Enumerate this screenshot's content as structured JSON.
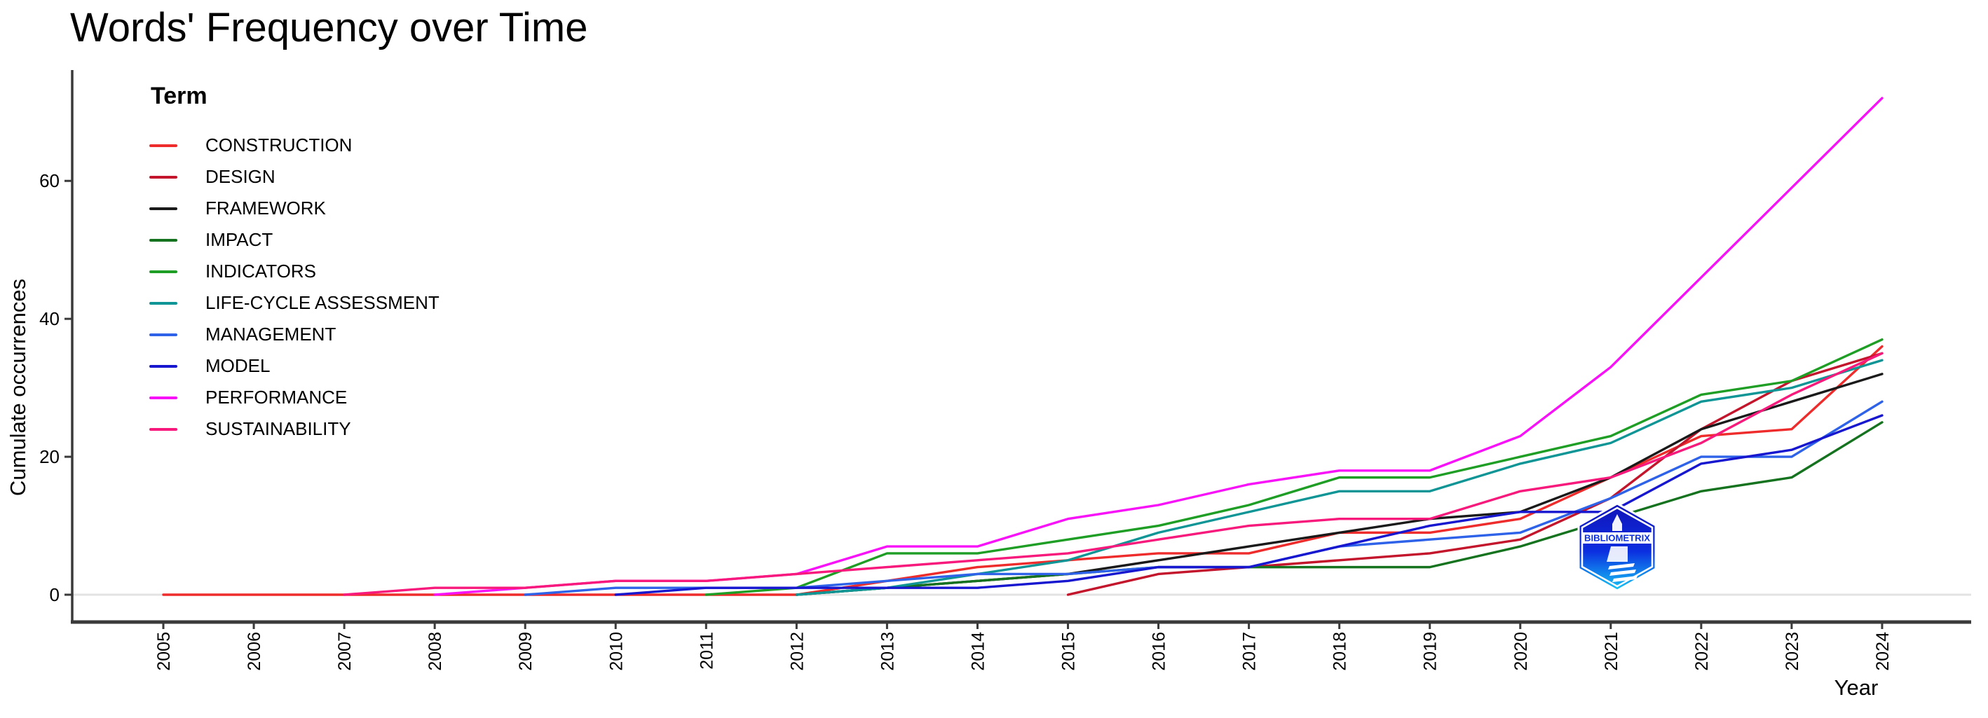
{
  "title": "Words' Frequency over Time",
  "axes": {
    "x_label": "Year",
    "y_label": "Cumulate occurrences",
    "y_ticks": [
      0,
      20,
      40,
      60
    ],
    "x_ticks": [
      "2005",
      "2006",
      "2007",
      "2008",
      "2009",
      "2010",
      "2011",
      "2012",
      "2013",
      "2014",
      "2015",
      "2016",
      "2017",
      "2018",
      "2019",
      "2020",
      "2021",
      "2022",
      "2023",
      "2024"
    ]
  },
  "legend": {
    "title": "Term",
    "items": [
      {
        "label": "CONSTRUCTION",
        "color": "#EE2C2C"
      },
      {
        "label": "DESIGN",
        "color": "#C3152B"
      },
      {
        "label": "FRAMEWORK",
        "color": "#1A1A1A"
      },
      {
        "label": "IMPACT",
        "color": "#15731F"
      },
      {
        "label": "INDICATORS",
        "color": "#1F9E25"
      },
      {
        "label": "LIFE-CYCLE ASSESSMENT",
        "color": "#0F9595"
      },
      {
        "label": "MANAGEMENT",
        "color": "#2E62E8"
      },
      {
        "label": "MODEL",
        "color": "#1717CF"
      },
      {
        "label": "PERFORMANCE",
        "color": "#F811F8"
      },
      {
        "label": "SUSTAINABILITY",
        "color": "#F7197B"
      }
    ]
  },
  "watermark": {
    "text": "BIBLIOMETRIX"
  },
  "chart_data": {
    "type": "line",
    "title": "Words' Frequency over Time",
    "xlabel": "Year",
    "ylabel": "Cumulate occurrences",
    "x": [
      2005,
      2006,
      2007,
      2008,
      2009,
      2010,
      2011,
      2012,
      2013,
      2014,
      2015,
      2016,
      2017,
      2018,
      2019,
      2020,
      2021,
      2022,
      2023,
      2024
    ],
    "ylim": [
      0,
      75
    ],
    "y_ticks": [
      0,
      20,
      40,
      60
    ],
    "grid": "zero-line-only",
    "legend_position": "top-left-inside",
    "series": [
      {
        "name": "CONSTRUCTION",
        "color": "#EE2C2C",
        "draw_from": 2005,
        "values": [
          0,
          0,
          0,
          0,
          0,
          0,
          0,
          0,
          2,
          4,
          5,
          6,
          6,
          9,
          9,
          11,
          17,
          23,
          24,
          36
        ]
      },
      {
        "name": "DESIGN",
        "color": "#C3152B",
        "draw_from": 2015,
        "values": [
          0,
          0,
          0,
          0,
          0,
          0,
          0,
          0,
          0,
          0,
          0,
          3,
          4,
          5,
          6,
          8,
          14,
          24,
          31,
          35
        ]
      },
      {
        "name": "FRAMEWORK",
        "color": "#1A1A1A",
        "draw_from": 2012,
        "values": [
          0,
          0,
          0,
          0,
          0,
          0,
          0,
          0,
          1,
          2,
          3,
          5,
          7,
          9,
          11,
          12,
          17,
          24,
          28,
          32
        ]
      },
      {
        "name": "IMPACT",
        "color": "#15731F",
        "draw_from": 2012,
        "values": [
          0,
          0,
          0,
          0,
          0,
          0,
          0,
          0,
          1,
          2,
          3,
          4,
          4,
          4,
          4,
          7,
          11,
          15,
          17,
          25
        ]
      },
      {
        "name": "INDICATORS",
        "color": "#1F9E25",
        "draw_from": 2011,
        "values": [
          0,
          0,
          0,
          0,
          0,
          0,
          0,
          1,
          6,
          6,
          8,
          10,
          13,
          17,
          17,
          20,
          23,
          29,
          31,
          37
        ]
      },
      {
        "name": "LIFE-CYCLE ASSESSMENT",
        "color": "#0F9595",
        "draw_from": 2012,
        "values": [
          0,
          0,
          0,
          0,
          0,
          0,
          0,
          0,
          1,
          3,
          5,
          9,
          12,
          15,
          15,
          19,
          22,
          28,
          30,
          34
        ]
      },
      {
        "name": "MANAGEMENT",
        "color": "#2E62E8",
        "draw_from": 2009,
        "values": [
          0,
          0,
          0,
          0,
          0,
          1,
          1,
          1,
          2,
          3,
          3,
          4,
          4,
          7,
          8,
          9,
          14,
          20,
          20,
          28
        ]
      },
      {
        "name": "MODEL",
        "color": "#1717CF",
        "draw_from": 2010,
        "values": [
          0,
          0,
          0,
          0,
          0,
          0,
          1,
          1,
          1,
          1,
          2,
          4,
          4,
          7,
          10,
          12,
          12,
          19,
          21,
          26
        ]
      },
      {
        "name": "PERFORMANCE",
        "color": "#F811F8",
        "draw_from": 2008,
        "values": [
          0,
          0,
          0,
          0,
          1,
          2,
          2,
          3,
          7,
          7,
          11,
          13,
          16,
          18,
          18,
          23,
          33,
          46,
          59,
          72
        ]
      },
      {
        "name": "SUSTAINABILITY",
        "color": "#F7197B",
        "draw_from": 2007,
        "values": [
          0,
          0,
          0,
          1,
          1,
          2,
          2,
          3,
          4,
          5,
          6,
          8,
          10,
          11,
          11,
          15,
          17,
          22,
          29,
          35
        ]
      }
    ]
  }
}
